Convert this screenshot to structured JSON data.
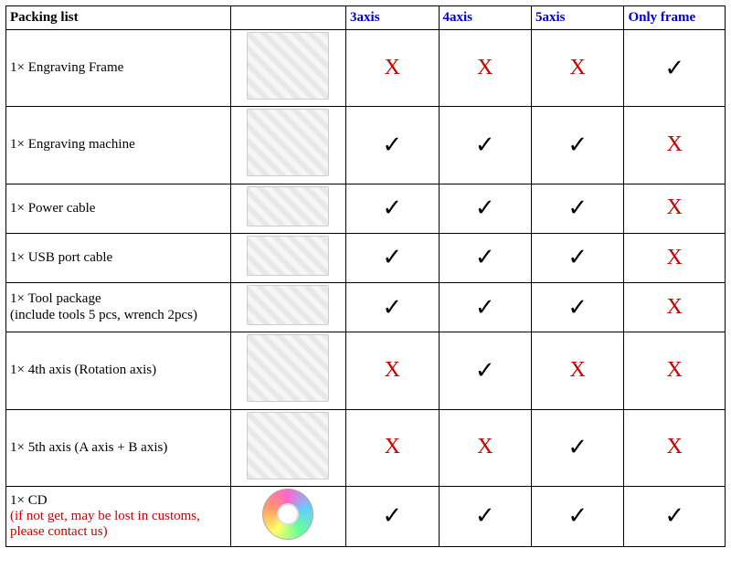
{
  "header": {
    "title": "Packing list",
    "options": [
      "3axis",
      "4axis",
      "5axis",
      "Only frame"
    ]
  },
  "marks": {
    "yes": "✓",
    "no": "X"
  },
  "rows": [
    {
      "label": "1× Engraving Frame",
      "note": "",
      "img": "frame",
      "imgH": "tall",
      "cells": [
        "no",
        "no",
        "no",
        "yes"
      ]
    },
    {
      "label": "1× Engraving machine",
      "note": "",
      "img": "machine",
      "imgH": "tall",
      "cells": [
        "yes",
        "yes",
        "yes",
        "no"
      ]
    },
    {
      "label": "1× Power cable",
      "note": "",
      "img": "cable",
      "imgH": "small",
      "cells": [
        "yes",
        "yes",
        "yes",
        "no"
      ]
    },
    {
      "label": "1× USB port cable",
      "note": "",
      "img": "usb",
      "imgH": "small",
      "cells": [
        "yes",
        "yes",
        "yes",
        "no"
      ]
    },
    {
      "label": "1× Tool package",
      "note": "(include tools 5 pcs, wrench 2pcs)",
      "noteColor": "#000",
      "img": "tools",
      "imgH": "small",
      "cells": [
        "yes",
        "yes",
        "yes",
        "no"
      ]
    },
    {
      "label": "1× 4th axis (Rotation axis)",
      "note": "",
      "img": "axis4",
      "imgH": "tall",
      "cells": [
        "no",
        "yes",
        "no",
        "no"
      ]
    },
    {
      "label": "1× 5th axis (A axis + B axis)",
      "note": "",
      "img": "axis5",
      "imgH": "tall",
      "cells": [
        "no",
        "no",
        "yes",
        "no"
      ]
    },
    {
      "label": "1× CD",
      "note": "(if not get, may be lost in customs, please contact us)",
      "noteColor": "#cc0000",
      "img": "cd",
      "imgH": "small",
      "cells": [
        "yes",
        "yes",
        "yes",
        "yes"
      ]
    }
  ]
}
